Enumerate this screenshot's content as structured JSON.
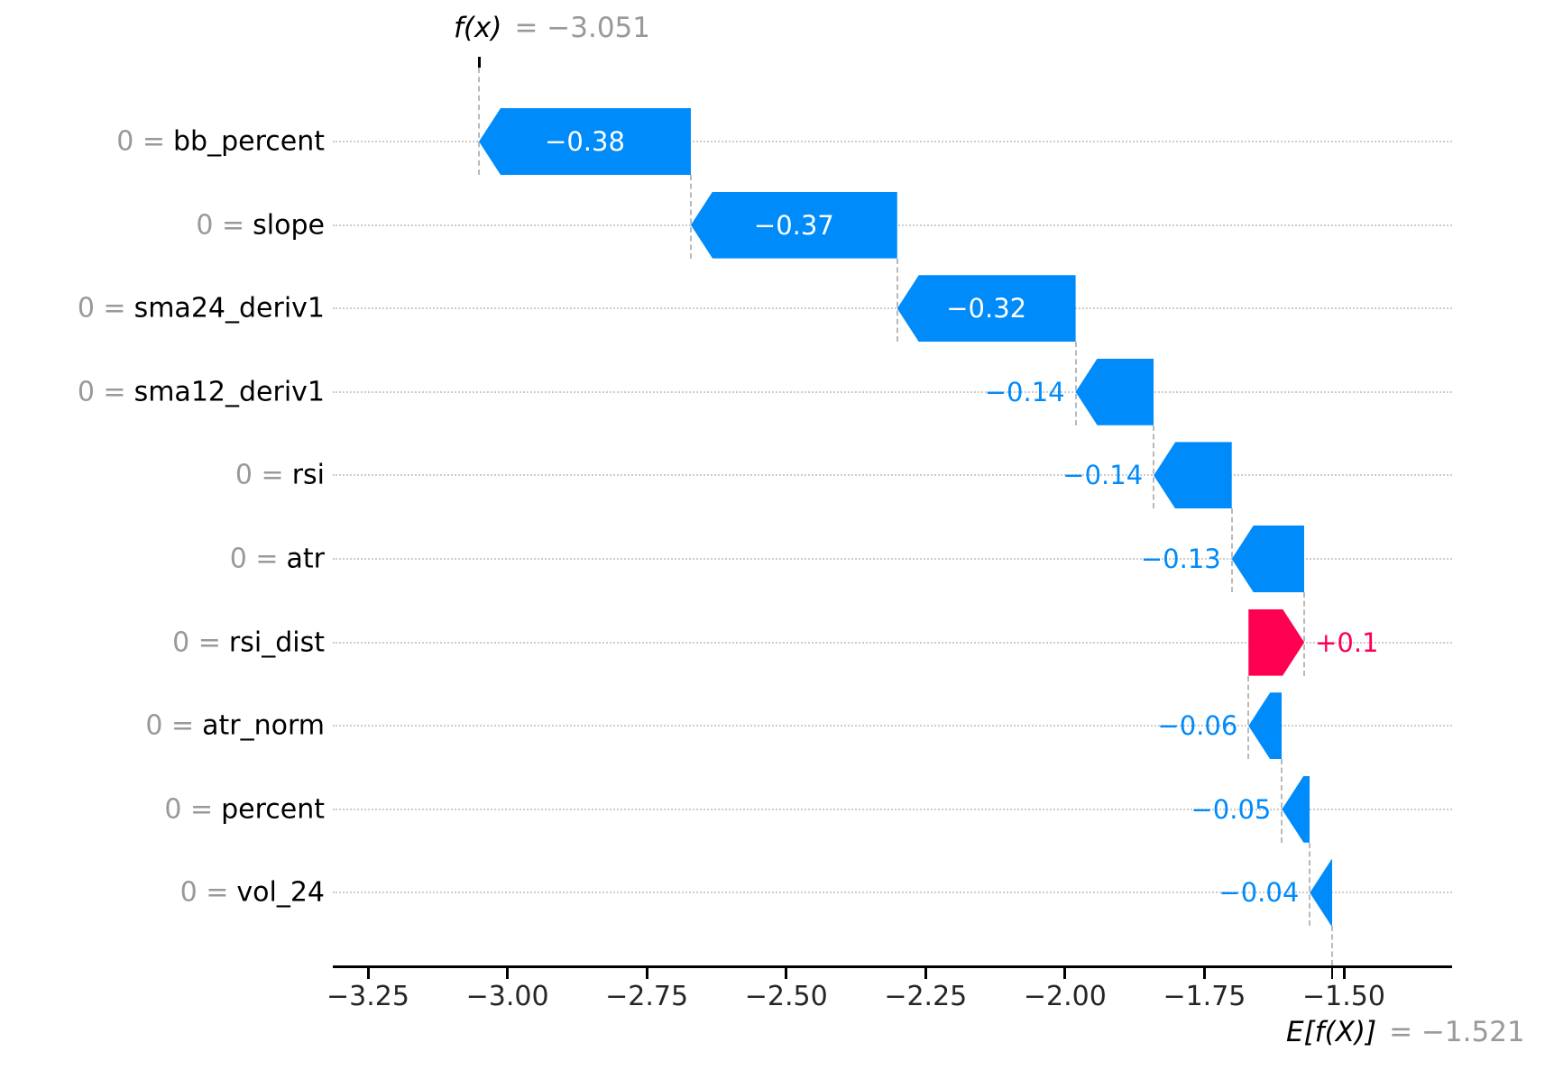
{
  "title": {
    "fx_label": "f(x)",
    "fx_value_label": "= −3.051"
  },
  "base": {
    "efx_label": "E[f(X)]",
    "efx_value_label": "= −1.521"
  },
  "chart_data": {
    "type": "waterfall",
    "description": "SHAP waterfall plot of feature contributions",
    "fx_value": -3.051,
    "base_value": -1.521,
    "xlim": [
      -3.313,
      -1.306
    ],
    "grid": "dotted-horizontal-rows",
    "x_ticks": [
      {
        "value": -3.25,
        "label": "−3.25"
      },
      {
        "value": -3.0,
        "label": "−3.00"
      },
      {
        "value": -2.75,
        "label": "−2.75"
      },
      {
        "value": -2.5,
        "label": "−2.50"
      },
      {
        "value": -2.25,
        "label": "−2.25"
      },
      {
        "value": -2.0,
        "label": "−2.00"
      },
      {
        "value": -1.75,
        "label": "−1.75"
      },
      {
        "value": -1.5,
        "label": "−1.50"
      }
    ],
    "colors": {
      "negative": "#008bfb",
      "positive": "#ff0051",
      "prefix_gray": "#999999",
      "gridline": "#cccccc",
      "connector": "#b9b9b9"
    },
    "features": [
      {
        "prefix_label": "0 =",
        "name": "bb_percent",
        "contribution": -0.38,
        "value_label": "−0.38"
      },
      {
        "prefix_label": "0 =",
        "name": "slope",
        "contribution": -0.37,
        "value_label": "−0.37"
      },
      {
        "prefix_label": "0 =",
        "name": "sma24_deriv1",
        "contribution": -0.32,
        "value_label": "−0.32"
      },
      {
        "prefix_label": "0 =",
        "name": "sma12_deriv1",
        "contribution": -0.14,
        "value_label": "−0.14"
      },
      {
        "prefix_label": "0 =",
        "name": "rsi",
        "contribution": -0.14,
        "value_label": "−0.14"
      },
      {
        "prefix_label": "0 =",
        "name": "atr",
        "contribution": -0.13,
        "value_label": "−0.13"
      },
      {
        "prefix_label": "0 =",
        "name": "rsi_dist",
        "contribution": 0.1,
        "value_label": "+0.1"
      },
      {
        "prefix_label": "0 =",
        "name": "atr_norm",
        "contribution": -0.06,
        "value_label": "−0.06"
      },
      {
        "prefix_label": "0 =",
        "name": "percent",
        "contribution": -0.05,
        "value_label": "−0.05"
      },
      {
        "prefix_label": "0 =",
        "name": "vol_24",
        "contribution": -0.04,
        "value_label": "−0.04"
      }
    ]
  }
}
